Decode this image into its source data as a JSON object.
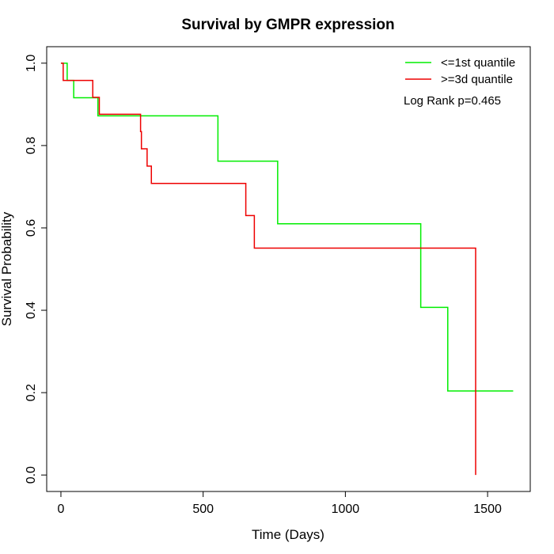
{
  "chart_data": {
    "type": "line",
    "title": "Survival by GMPR expression",
    "xlabel": "Time (Days)",
    "ylabel": "Survival Probability",
    "xlim": [
      -50,
      1650
    ],
    "ylim": [
      -0.04,
      1.04
    ],
    "xticks": [
      0,
      500,
      1000,
      1500
    ],
    "yticks": [
      0.0,
      0.2,
      0.4,
      0.6,
      0.8,
      1.0
    ],
    "xtick_labels": [
      "0",
      "500",
      "1000",
      "1500"
    ],
    "ytick_labels": [
      "0.0",
      "0.2",
      "0.4",
      "0.6",
      "0.8",
      "1.0"
    ],
    "grid": false,
    "legend_position": "top-right",
    "annotation": "Log Rank p=0.465",
    "series": [
      {
        "name": "<=1st quantile",
        "color": "#00ee00",
        "steps": [
          [
            0,
            1.0
          ],
          [
            22,
            0.958
          ],
          [
            45,
            0.916
          ],
          [
            130,
            0.872
          ],
          [
            552,
            0.762
          ],
          [
            762,
            0.61
          ],
          [
            1265,
            0.407
          ],
          [
            1360,
            0.204
          ]
        ],
        "end_x": 1590
      },
      {
        "name": ">=3d quantile",
        "color": "#ee0000",
        "steps": [
          [
            0,
            1.0
          ],
          [
            8,
            0.958
          ],
          [
            112,
            0.917
          ],
          [
            135,
            0.876
          ],
          [
            280,
            0.834
          ],
          [
            283,
            0.792
          ],
          [
            303,
            0.75
          ],
          [
            318,
            0.708
          ],
          [
            650,
            0.63
          ],
          [
            680,
            0.551
          ],
          [
            1458,
            0.0
          ]
        ],
        "end_x": 1458
      }
    ]
  }
}
